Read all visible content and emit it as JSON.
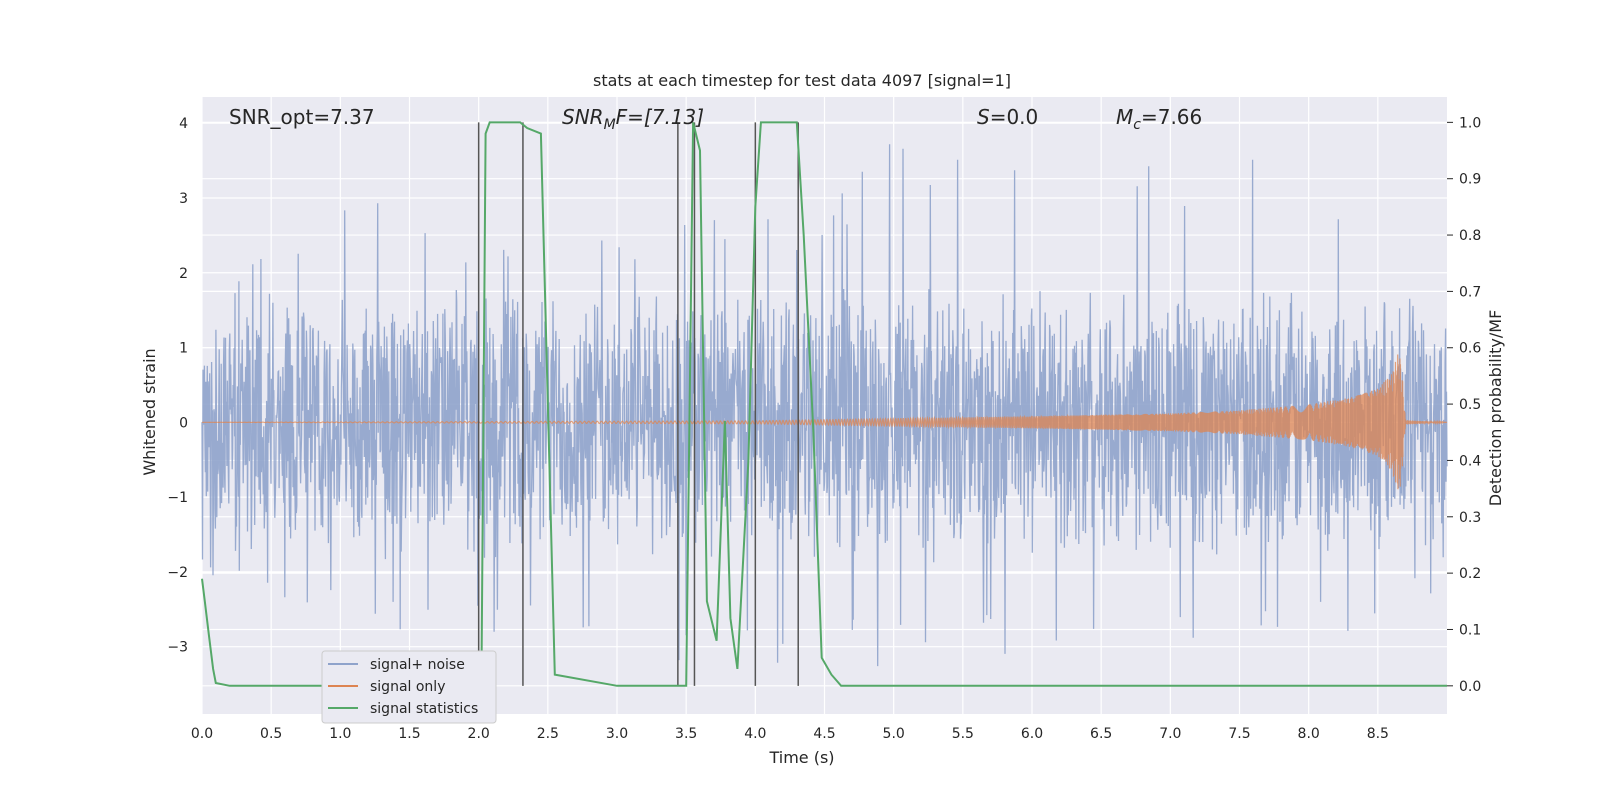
{
  "chart_data": {
    "type": "line",
    "title": "stats at each timestep for test data 4097 [signal=1]",
    "xlabel": "Time (s)",
    "ylabel_left": "Whitened strain",
    "ylabel_right": "Detection probability/MF",
    "xlim": [
      0.0,
      9.0
    ],
    "ylim_left": [
      -3.9,
      4.35
    ],
    "ylim_right": [
      -0.05,
      1.045
    ],
    "xticks": [
      "0.0",
      "0.5",
      "1.0",
      "1.5",
      "2.0",
      "2.5",
      "3.0",
      "3.5",
      "4.0",
      "4.5",
      "5.0",
      "5.5",
      "6.0",
      "6.5",
      "7.0",
      "7.5",
      "8.0",
      "8.5"
    ],
    "yticks_left": [
      "−3",
      "−2",
      "−1",
      "0",
      "1",
      "2",
      "3",
      "4"
    ],
    "yticks_right": [
      "0.0",
      "0.1",
      "0.2",
      "0.3",
      "0.4",
      "0.5",
      "0.6",
      "0.7",
      "0.8",
      "0.9",
      "1.0"
    ],
    "grid": true,
    "annotations": {
      "snr_opt": "SNR_opt=7.37",
      "snr_mf_sym": "SNR",
      "snr_mf_sub": "M",
      "snr_mf_rest": "F=[7.13]",
      "s_sym": "S",
      "s_rest": "=0.0",
      "mc_sym": "M",
      "mc_sub": "c",
      "mc_rest": "=7.66"
    },
    "legend": {
      "position": "lower-left",
      "entries": [
        "signal+ noise",
        "signal only",
        "signal statistics"
      ]
    },
    "colors": {
      "noise": "#8fa3cb",
      "signal": "#dd8452",
      "stats": "#55a868",
      "markers": "#555555",
      "background": "#eaeaf2",
      "grid": "#ffffff"
    },
    "series": [
      {
        "name": "signal+ noise",
        "axis": "left",
        "description_values": "noise band roughly between -2.2 and 2.2 with spikes",
        "envelope_x": [
          0.0,
          1.5,
          2.0,
          3.0,
          4.5,
          5.0,
          7.7,
          8.0,
          9.0
        ],
        "envelope_max": [
          2.1,
          3.25,
          2.5,
          2.6,
          2.9,
          4.0,
          3.5,
          3.3,
          3.3
        ],
        "envelope_min": [
          -2.1,
          -2.9,
          -2.9,
          -3.3,
          -3.2,
          -3.3,
          -2.9,
          -3.0,
          -2.4
        ]
      },
      {
        "name": "signal only",
        "axis": "left",
        "x": [
          0.0,
          4.0,
          5.0,
          6.0,
          7.0,
          7.5,
          8.0,
          8.3,
          8.5,
          8.6,
          8.65,
          8.67,
          8.7,
          9.0
        ],
        "amplitude": [
          0.0,
          0.02,
          0.05,
          0.08,
          0.12,
          0.16,
          0.24,
          0.33,
          0.45,
          0.65,
          0.95,
          0.8,
          0.03,
          0.0
        ]
      },
      {
        "name": "signal statistics",
        "axis": "right",
        "x": [
          0.0,
          0.02,
          0.05,
          0.08,
          0.1,
          0.2,
          0.5,
          1.0,
          1.5,
          1.9,
          1.98,
          2.02,
          2.05,
          2.08,
          2.15,
          2.3,
          2.35,
          2.45,
          2.55,
          3.0,
          3.4,
          3.5,
          3.55,
          3.6,
          3.65,
          3.72,
          3.78,
          3.82,
          3.87,
          3.95,
          4.0,
          4.04,
          4.1,
          4.2,
          4.3,
          4.35,
          4.42,
          4.48,
          4.55,
          4.62,
          5.0,
          6.0,
          7.0,
          8.0,
          9.0
        ],
        "values": [
          0.19,
          0.15,
          0.09,
          0.03,
          0.005,
          0.0,
          0.0,
          0.0,
          0.0,
          0.0,
          0.0,
          0.0,
          0.98,
          1.0,
          1.0,
          1.0,
          0.99,
          0.98,
          0.02,
          0.0,
          0.0,
          0.0,
          1.0,
          0.95,
          0.15,
          0.08,
          0.47,
          0.12,
          0.03,
          0.4,
          0.85,
          1.0,
          1.0,
          1.0,
          1.0,
          0.8,
          0.45,
          0.05,
          0.02,
          0.0,
          0.0,
          0.0,
          0.0,
          0.0,
          0.0
        ]
      }
    ],
    "vertical_markers": [
      2.0,
      2.32,
      3.44,
      3.56,
      4.0,
      4.31
    ]
  }
}
